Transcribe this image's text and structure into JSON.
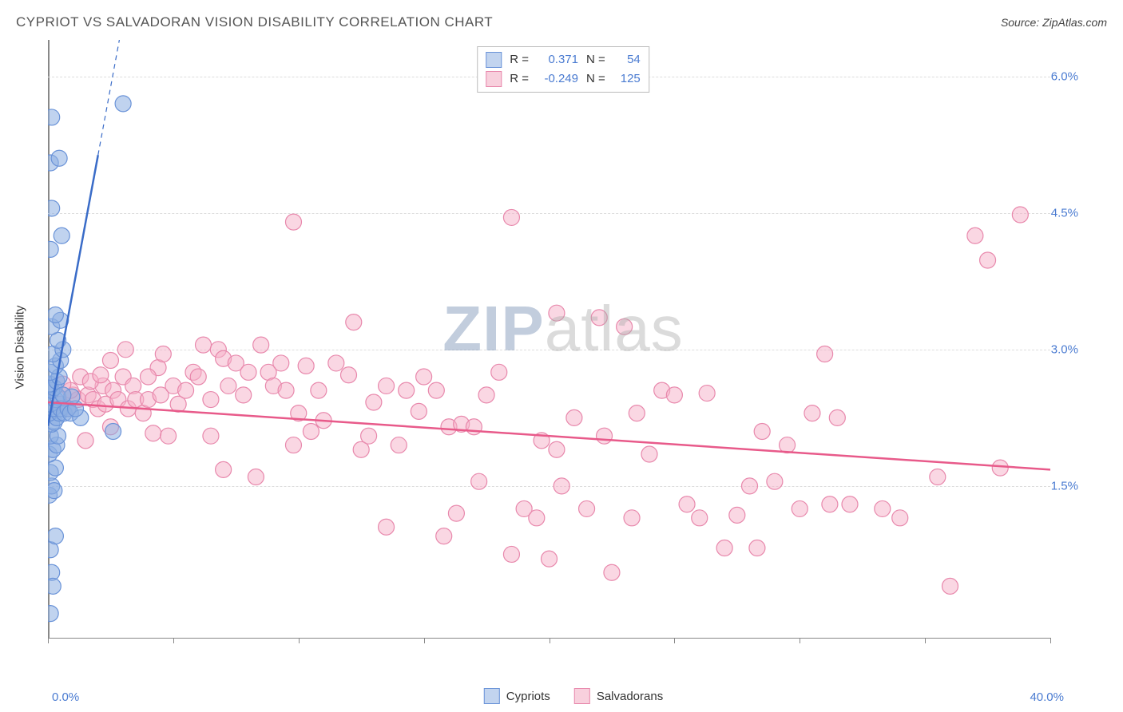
{
  "title": "CYPRIOT VS SALVADORAN VISION DISABILITY CORRELATION CHART",
  "source": "Source: ZipAtlas.com",
  "watermark": {
    "zip": "ZIP",
    "atlas": "atlas"
  },
  "yaxis_label": "Vision Disability",
  "xaxis": {
    "min_label": "0.0%",
    "max_label": "40.0%",
    "min": 0,
    "max": 40
  },
  "yaxis": {
    "min": 0,
    "max": 6.4,
    "ticks": [
      1.5,
      3.0,
      4.5,
      6.0
    ],
    "tick_labels": [
      "1.5%",
      "3.0%",
      "4.5%",
      "6.0%"
    ]
  },
  "legend_bottom": [
    {
      "color": "blue",
      "label": "Cypriots"
    },
    {
      "color": "pink",
      "label": "Salvadorans"
    }
  ],
  "stats": [
    {
      "swatch": "blue",
      "r": "0.371",
      "n": "54"
    },
    {
      "swatch": "pink",
      "r": "-0.249",
      "n": "125"
    }
  ],
  "xticks": [
    0,
    5,
    10,
    15,
    20,
    25,
    30,
    35,
    40
  ],
  "colors": {
    "blue_fill": "rgba(140,175,225,0.55)",
    "blue_stroke": "#6a93d8",
    "pink_fill": "rgba(245,175,200,0.50)",
    "pink_stroke": "#e888ac",
    "blue_line": "#3a6cc8",
    "pink_line": "#e85a8a",
    "grid": "#dddddd",
    "axis": "#888888",
    "tick_text": "#4a7bd1"
  },
  "marker_radius": 10,
  "line_width_solid": 2.5,
  "line_width_dashed": 1.2,
  "trend_lines": {
    "blue": {
      "x1": 0,
      "y1": 2.16,
      "x2": 2.85,
      "y2": 6.4,
      "solid_until_x": 2.0
    },
    "pink": {
      "x1": 0,
      "y1": 2.42,
      "x2": 40,
      "y2": 1.68
    }
  },
  "series": {
    "cypriots": [
      [
        0.1,
        0.1
      ],
      [
        0.15,
        0.55
      ],
      [
        0.2,
        0.4
      ],
      [
        0.1,
        0.8
      ],
      [
        0.3,
        0.95
      ],
      [
        0.05,
        1.4
      ],
      [
        0.15,
        1.5
      ],
      [
        0.25,
        1.45
      ],
      [
        0.1,
        1.65
      ],
      [
        0.3,
        1.7
      ],
      [
        0.05,
        1.85
      ],
      [
        0.2,
        1.9
      ],
      [
        0.35,
        1.95
      ],
      [
        0.1,
        2.05
      ],
      [
        0.4,
        2.05
      ],
      [
        0.15,
        2.18
      ],
      [
        0.25,
        2.2
      ],
      [
        0.35,
        2.25
      ],
      [
        0.05,
        2.3
      ],
      [
        0.45,
        2.3
      ],
      [
        0.2,
        2.35
      ],
      [
        0.1,
        2.4
      ],
      [
        0.3,
        2.45
      ],
      [
        0.4,
        2.48
      ],
      [
        0.15,
        2.55
      ],
      [
        0.25,
        2.58
      ],
      [
        0.08,
        2.62
      ],
      [
        0.35,
        2.65
      ],
      [
        0.45,
        2.7
      ],
      [
        0.5,
        2.35
      ],
      [
        0.65,
        2.3
      ],
      [
        0.8,
        2.35
      ],
      [
        0.9,
        2.3
      ],
      [
        1.3,
        2.25
      ],
      [
        1.1,
        2.35
      ],
      [
        0.95,
        2.48
      ],
      [
        0.6,
        2.5
      ],
      [
        0.1,
        2.75
      ],
      [
        0.3,
        2.82
      ],
      [
        0.5,
        2.88
      ],
      [
        0.2,
        2.95
      ],
      [
        0.6,
        3.0
      ],
      [
        0.4,
        3.1
      ],
      [
        0.15,
        3.25
      ],
      [
        0.5,
        3.32
      ],
      [
        0.3,
        3.38
      ],
      [
        0.1,
        4.1
      ],
      [
        0.55,
        4.25
      ],
      [
        0.15,
        4.55
      ],
      [
        0.1,
        5.05
      ],
      [
        0.45,
        5.1
      ],
      [
        0.15,
        5.55
      ],
      [
        3.0,
        5.7
      ],
      [
        2.6,
        2.1
      ]
    ],
    "salvadorans": [
      [
        0.5,
        2.4
      ],
      [
        0.8,
        2.35
      ],
      [
        1.0,
        2.5
      ],
      [
        1.2,
        2.45
      ],
      [
        1.5,
        2.0
      ],
      [
        1.6,
        2.5
      ],
      [
        1.8,
        2.45
      ],
      [
        2.0,
        2.35
      ],
      [
        2.2,
        2.6
      ],
      [
        2.3,
        2.4
      ],
      [
        2.5,
        2.15
      ],
      [
        2.6,
        2.55
      ],
      [
        2.8,
        2.45
      ],
      [
        3.0,
        2.7
      ],
      [
        3.2,
        2.35
      ],
      [
        3.4,
        2.6
      ],
      [
        3.5,
        2.45
      ],
      [
        3.8,
        2.3
      ],
      [
        4.0,
        2.45
      ],
      [
        4.2,
        2.08
      ],
      [
        4.4,
        2.8
      ],
      [
        4.5,
        2.5
      ],
      [
        4.8,
        2.05
      ],
      [
        5.0,
        2.6
      ],
      [
        5.2,
        2.4
      ],
      [
        5.5,
        2.55
      ],
      [
        5.8,
        2.75
      ],
      [
        6.0,
        2.7
      ],
      [
        6.2,
        3.05
      ],
      [
        6.5,
        2.45
      ],
      [
        6.8,
        3.0
      ],
      [
        7.0,
        2.9
      ],
      [
        7.2,
        2.6
      ],
      [
        7.5,
        2.85
      ],
      [
        7.8,
        2.5
      ],
      [
        8.0,
        2.75
      ],
      [
        8.3,
        1.6
      ],
      [
        8.5,
        3.05
      ],
      [
        8.8,
        2.75
      ],
      [
        9.0,
        2.6
      ],
      [
        9.3,
        2.85
      ],
      [
        9.5,
        2.55
      ],
      [
        9.8,
        1.95
      ],
      [
        10.0,
        2.3
      ],
      [
        10.3,
        2.82
      ],
      [
        10.5,
        2.1
      ],
      [
        10.8,
        2.55
      ],
      [
        11.0,
        2.22
      ],
      [
        11.5,
        2.85
      ],
      [
        12.0,
        2.72
      ],
      [
        12.2,
        3.3
      ],
      [
        12.5,
        1.9
      ],
      [
        13.0,
        2.42
      ],
      [
        13.5,
        2.6
      ],
      [
        14.0,
        1.95
      ],
      [
        14.3,
        2.55
      ],
      [
        14.8,
        2.32
      ],
      [
        15.0,
        2.7
      ],
      [
        15.5,
        2.55
      ],
      [
        16.0,
        2.15
      ],
      [
        16.3,
        1.2
      ],
      [
        16.5,
        2.18
      ],
      [
        17.0,
        2.15
      ],
      [
        17.5,
        2.5
      ],
      [
        18.0,
        2.75
      ],
      [
        18.5,
        4.45
      ],
      [
        18.5,
        0.75
      ],
      [
        19.0,
        1.25
      ],
      [
        19.5,
        1.15
      ],
      [
        19.7,
        2.0
      ],
      [
        20.0,
        0.7
      ],
      [
        20.3,
        1.9
      ],
      [
        20.5,
        1.5
      ],
      [
        21.0,
        2.25
      ],
      [
        21.5,
        1.25
      ],
      [
        22.0,
        3.35
      ],
      [
        22.2,
        2.05
      ],
      [
        22.5,
        0.55
      ],
      [
        23.0,
        3.25
      ],
      [
        23.3,
        1.15
      ],
      [
        23.5,
        2.3
      ],
      [
        24.0,
        1.85
      ],
      [
        24.5,
        2.55
      ],
      [
        25.0,
        2.5
      ],
      [
        26.0,
        1.15
      ],
      [
        26.3,
        2.52
      ],
      [
        27.5,
        1.18
      ],
      [
        28.0,
        1.5
      ],
      [
        28.3,
        0.82
      ],
      [
        28.5,
        2.1
      ],
      [
        29.0,
        1.55
      ],
      [
        29.5,
        1.95
      ],
      [
        30.0,
        1.25
      ],
      [
        30.5,
        2.3
      ],
      [
        31.0,
        2.95
      ],
      [
        31.2,
        1.3
      ],
      [
        31.5,
        2.25
      ],
      [
        32.0,
        1.3
      ],
      [
        33.3,
        1.25
      ],
      [
        34.0,
        1.15
      ],
      [
        35.5,
        1.6
      ],
      [
        36.0,
        0.4
      ],
      [
        37.0,
        4.25
      ],
      [
        37.5,
        3.98
      ],
      [
        38.0,
        1.7
      ],
      [
        38.8,
        4.48
      ],
      [
        9.8,
        4.4
      ],
      [
        20.3,
        3.4
      ],
      [
        2.5,
        2.88
      ],
      [
        3.1,
        3.0
      ],
      [
        4.0,
        2.7
      ],
      [
        6.5,
        2.05
      ],
      [
        7.0,
        1.68
      ],
      [
        13.5,
        1.05
      ],
      [
        15.8,
        0.95
      ],
      [
        17.2,
        1.55
      ],
      [
        25.5,
        1.3
      ],
      [
        27.0,
        0.82
      ],
      [
        12.8,
        2.05
      ],
      [
        4.6,
        2.95
      ],
      [
        1.3,
        2.7
      ],
      [
        0.9,
        2.55
      ],
      [
        0.6,
        2.62
      ],
      [
        1.7,
        2.65
      ],
      [
        2.1,
        2.72
      ]
    ]
  }
}
